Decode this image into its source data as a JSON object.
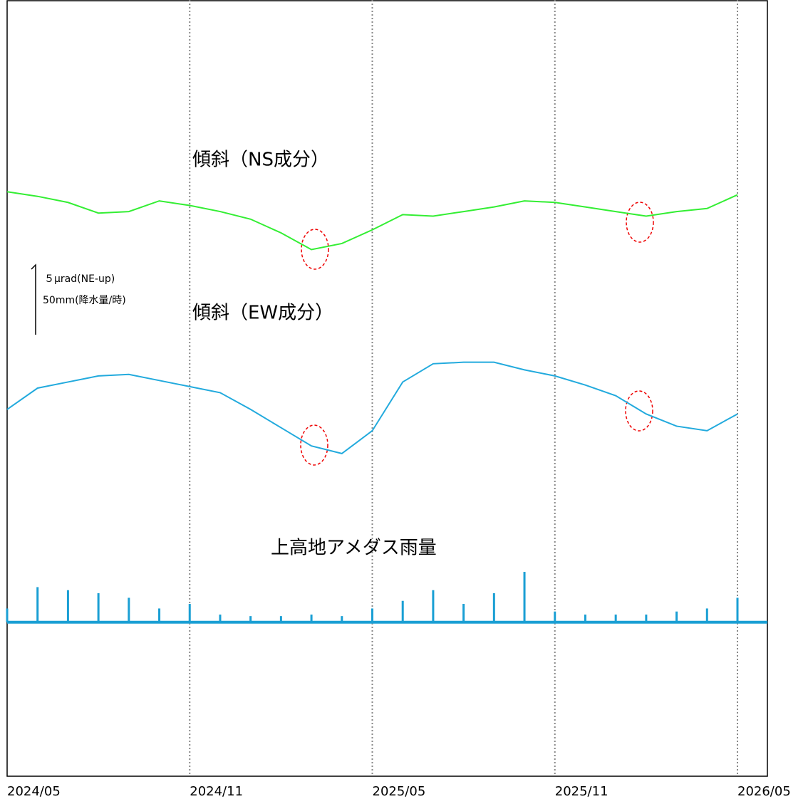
{
  "chart_data": {
    "type": "line",
    "annotations": [
      "傾斜（NS成分）",
      "傾斜（EW成分）",
      "上高地アメダス雨量"
    ],
    "scale_labels": [
      "５μrad(NE-up)",
      "50mm(降水量/時)"
    ],
    "x": [
      "2024/05",
      "2024/06",
      "2024/07",
      "2024/08",
      "2024/09",
      "2024/10",
      "2024/11",
      "2024/12",
      "2025/01",
      "2025/02",
      "2025/03",
      "2025/04",
      "2025/05",
      "2025/06",
      "2025/07",
      "2025/08",
      "2025/09",
      "2025/10",
      "2025/11",
      "2025/12",
      "2026/01",
      "2026/02",
      "2026/03",
      "2026/04",
      "2026/05"
    ],
    "xticks": [
      "2024/05",
      "2024/11",
      "2025/05",
      "2025/11",
      "2026/05"
    ],
    "ylim": [
      0,
      51
    ],
    "y2lim": [
      -101,
      408
    ],
    "series": [
      {
        "name": "傾斜（NS成分）",
        "color": "#33ee33",
        "values": [
          38.4,
          38.1,
          37.7,
          37.0,
          37.1,
          37.8,
          37.5,
          37.1,
          36.6,
          35.7,
          34.6,
          35.0,
          35.9,
          36.9,
          36.8,
          37.1,
          37.4,
          37.8,
          37.7,
          37.4,
          37.1,
          36.8,
          37.1,
          37.3,
          38.2
        ]
      },
      {
        "name": "傾斜（EW成分）",
        "color": "#22aadd",
        "values": [
          24.1,
          25.5,
          25.9,
          26.3,
          26.4,
          26.0,
          25.6,
          25.2,
          24.1,
          22.9,
          21.7,
          21.2,
          22.7,
          25.9,
          27.1,
          27.2,
          27.2,
          26.7,
          26.3,
          25.7,
          25.0,
          23.8,
          23.0,
          22.7,
          23.8
        ]
      },
      {
        "name": "上高地アメダス雨量",
        "color": "#1a9fd4",
        "axis": "y2",
        "type": "bar",
        "values": [
          9,
          23,
          21,
          19,
          16,
          9,
          12,
          5,
          4,
          4,
          5,
          4,
          9,
          14,
          21,
          12,
          19,
          33,
          7,
          5,
          5,
          5,
          7,
          9,
          16
        ]
      }
    ]
  }
}
